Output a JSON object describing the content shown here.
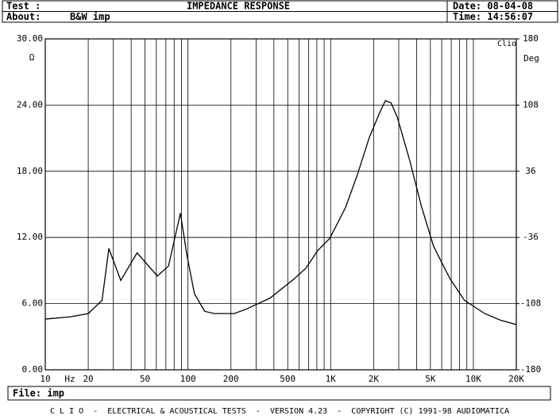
{
  "header": {
    "test": "Test :",
    "title": "IMPEDANCE RESPONSE",
    "date": "Date: 08-04-08",
    "about": "About:",
    "about_value": "B&W imp",
    "time": "Time: 14:56:07"
  },
  "chart_data": {
    "type": "line",
    "color": "#000000",
    "xscale": "log",
    "grid": true,
    "xlim": [
      10,
      20000
    ],
    "xticks": [
      10,
      20,
      50,
      100,
      200,
      500,
      {
        "value": 1000,
        "label": "1K"
      },
      {
        "value": 2000,
        "label": "2K"
      },
      {
        "value": 5000,
        "label": "5K"
      },
      {
        "value": 10000,
        "label": "10K"
      },
      {
        "value": 20000,
        "label": "20K"
      }
    ],
    "xgrid": [
      30,
      40,
      60,
      70,
      80,
      90,
      300,
      400,
      600,
      700,
      800,
      900,
      3000,
      4000,
      6000,
      7000,
      8000,
      9000
    ],
    "xlabel": "Hz",
    "ylim": [
      0,
      30
    ],
    "yticks": [
      {
        "value": 0,
        "label": "0.00"
      },
      {
        "value": 6,
        "label": "6.00"
      },
      {
        "value": 12,
        "label": "12.00"
      },
      {
        "value": 18,
        "label": "18.00"
      },
      {
        "value": 24,
        "label": "24.00"
      },
      {
        "value": 30,
        "label": "30.00"
      }
    ],
    "ylabel": "Ω",
    "y2lim": [
      -180,
      180
    ],
    "y2ticks": [
      -180,
      -108,
      -36,
      36,
      108,
      180
    ],
    "y2label": "Deg",
    "corner_label": "Clio",
    "x": [
      10,
      15,
      20,
      25,
      27.9,
      33.8,
      44,
      61,
      73,
      88.5,
      98,
      111,
      131,
      153,
      211,
      256,
      376,
      550,
      670,
      810,
      984,
      1270,
      1540,
      1870,
      2220,
      2420,
      2650,
      2930,
      3560,
      4330,
      5260,
      6830,
      8660,
      12000,
      15500,
      20000
    ],
    "values": [
      4.6,
      4.8,
      5.1,
      6.3,
      11.0,
      8.1,
      10.6,
      8.5,
      9.4,
      14.2,
      10.5,
      6.9,
      5.3,
      5.1,
      5.1,
      5.5,
      6.5,
      8.2,
      9.2,
      10.8,
      11.9,
      14.7,
      17.7,
      21.1,
      23.4,
      24.4,
      24.2,
      22.9,
      19.1,
      14.8,
      11.2,
      8.3,
      6.3,
      5.1,
      4.5,
      4.1
    ]
  },
  "footer": {
    "file": "File: imp",
    "credits": "C L I O  -  ELECTRICAL & ACOUSTICAL TESTS  -  VERSION 4.23  -  COPYRIGHT (C) 1991-98 AUDIOMATICA"
  }
}
